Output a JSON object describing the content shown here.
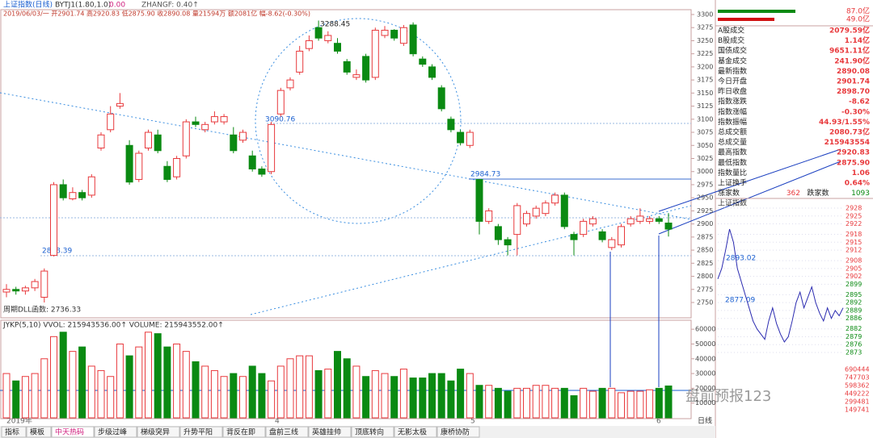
{
  "header": {
    "name": "上证指数(日线)",
    "indicator": "BYTJ1(1.80,1.0)",
    "ind_value": "0.00",
    "zhangf": "ZHANGF: 0.40↑",
    "quote": "2019/06/03/一 开2901.74 高2920.83 低2875.90 收2890.08 量21594万 额2081亿 幅-8.62(-0.30%)"
  },
  "chart_data": {
    "type": "candlestick",
    "open": [
      2770,
      2775,
      2772,
      2778,
      2760,
      2840,
      2975,
      2948,
      2960,
      2955,
      3045,
      3080,
      3125,
      3050,
      2985,
      3045,
      3070,
      3010,
      2990,
      3030,
      3095,
      3080,
      3095,
      3095,
      3070,
      3060,
      3030,
      3005,
      3000,
      3110,
      3160,
      3190,
      3235,
      3275,
      3250,
      3245,
      3210,
      3180,
      3220,
      3180,
      3260,
      3270,
      3245,
      3280,
      3215,
      3200,
      3160,
      3100,
      3075,
      3050,
      2985,
      2905,
      2895,
      2870,
      2880,
      2900,
      2915,
      2920,
      2940,
      2955,
      2880,
      2880,
      2900,
      2885,
      2855,
      2860,
      2900,
      2905,
      2905,
      2910,
      2901.74
    ],
    "close": [
      2775,
      2772,
      2778,
      2790,
      2810,
      2975,
      2950,
      2960,
      2950,
      2990,
      3070,
      3110,
      3130,
      2980,
      3035,
      3075,
      3040,
      2985,
      3025,
      3095,
      3090,
      3090,
      3105,
      3105,
      3040,
      3075,
      3005,
      2995,
      3090,
      3155,
      3175,
      3230,
      3250,
      3255,
      3260,
      3230,
      3190,
      3185,
      3175,
      3270,
      3270,
      3255,
      3275,
      3225,
      3205,
      3180,
      3120,
      3080,
      3055,
      3075,
      2905,
      2925,
      2870,
      2860,
      2935,
      2920,
      2930,
      2940,
      2955,
      2895,
      2870,
      2905,
      2910,
      2870,
      2870,
      2895,
      2910,
      2915,
      2910,
      2905,
      2890.08
    ],
    "high": [
      2785,
      2780,
      2782,
      2795,
      2815,
      2980,
      2985,
      2970,
      2965,
      2995,
      3075,
      3125,
      3150,
      3060,
      3040,
      3080,
      3080,
      3020,
      3030,
      3100,
      3105,
      3095,
      3115,
      3110,
      3085,
      3080,
      3040,
      3010,
      3095,
      3160,
      3180,
      3240,
      3260,
      3288.45,
      3268,
      3255,
      3215,
      3195,
      3225,
      3275,
      3278,
      3272,
      3280,
      3285,
      3220,
      3205,
      3165,
      3105,
      3080,
      3080,
      2985,
      2930,
      2900,
      2875,
      2940,
      2925,
      2935,
      2945,
      2960,
      2960,
      2885,
      2910,
      2915,
      2890,
      2875,
      2900,
      2915,
      2930,
      2915,
      2915,
      2920.83
    ],
    "low": [
      2760,
      2765,
      2765,
      2772,
      2750,
      2838,
      2945,
      2945,
      2945,
      2950,
      3040,
      3075,
      3120,
      2975,
      2980,
      3040,
      3035,
      2980,
      2985,
      3025,
      3085,
      3075,
      3090,
      3090,
      3035,
      3055,
      3000,
      2990,
      2995,
      3105,
      3155,
      3185,
      3230,
      3250,
      3245,
      3225,
      3185,
      3175,
      3170,
      3175,
      3255,
      3250,
      3240,
      3220,
      3200,
      3175,
      3115,
      3075,
      3050,
      3045,
      2880,
      2900,
      2860,
      2840,
      2840,
      2895,
      2910,
      2915,
      2935,
      2890,
      2840,
      2875,
      2895,
      2865,
      2850,
      2855,
      2895,
      2900,
      2900,
      2900,
      2875.9
    ],
    "volume": [
      30000,
      25000,
      28000,
      30000,
      40000,
      55000,
      58000,
      45000,
      48000,
      35000,
      32000,
      28000,
      50000,
      42000,
      48000,
      58000,
      57000,
      48000,
      50000,
      45000,
      38000,
      35000,
      32000,
      28000,
      30000,
      28000,
      35000,
      30000,
      25000,
      35000,
      40000,
      42000,
      42000,
      32000,
      33000,
      45000,
      40000,
      35000,
      28000,
      32000,
      30000,
      28000,
      33000,
      27000,
      27000,
      30000,
      30000,
      25000,
      33000,
      30000,
      22000,
      22000,
      20000,
      18000,
      20000,
      20000,
      22000,
      22000,
      20000,
      20000,
      15000,
      20000,
      18000,
      20000,
      20000,
      17000,
      18000,
      18000,
      19000,
      20000,
      21594
    ],
    "ylim": [
      2740,
      3310
    ],
    "yticks": [
      3300,
      3275,
      3250,
      3225,
      3200,
      3175,
      3150,
      3125,
      3100,
      3075,
      3050,
      3025,
      3000,
      2975,
      2950,
      2925,
      2900,
      2875,
      2850,
      2825,
      2800,
      2775,
      2750
    ],
    "volume_ylim": [
      0,
      65000
    ],
    "volume_ticks": [
      60000,
      50000,
      40000,
      30000,
      20000,
      10000
    ],
    "volume_title": "JYKP(5,10) VVOL: 215943536.00↑  VOLUME: 215943552.00↑",
    "up_color": "#e8393c",
    "down_color": "#0a8a12",
    "annotations": [
      "3288.45",
      "3090.76",
      "2984.73",
      "2838.39",
      "周期DLL函数: 2736.33"
    ],
    "x_labels": [
      "2019年",
      "4",
      "5",
      "6"
    ]
  },
  "panel": {
    "bars": [
      "87.0亿",
      "49.0亿"
    ],
    "rows": [
      [
        "A股成交",
        "2079.59亿"
      ],
      [
        "B股成交",
        "1.14亿"
      ],
      [
        "国债成交",
        "9651.11亿"
      ],
      [
        "基金成交",
        "241.90亿"
      ],
      [
        "最新指数",
        "2890.08"
      ],
      [
        "今日开盘",
        "2901.74"
      ],
      [
        "昨日收盘",
        "2898.70"
      ],
      [
        "指数涨跌",
        "-8.62"
      ],
      [
        "指数涨幅",
        "-0.30%"
      ],
      [
        "指数振幅",
        "44.93/1.55%"
      ],
      [
        "总成交额",
        "2080.73亿"
      ],
      [
        "总成交量",
        "215943554"
      ],
      [
        "最高指数",
        "2920.83"
      ],
      [
        "最低指数",
        "2875.90"
      ],
      [
        "指数量比",
        "1.06"
      ],
      [
        "上证换手",
        "0.64%"
      ]
    ],
    "advance_label": "涨家数",
    "advance": 362,
    "decline_label": "跌家数",
    "decline": 1093
  },
  "mini": {
    "title": "上证指数",
    "ylim": [
      2873,
      2928
    ],
    "price_labels": [
      2928,
      2925,
      2922,
      2918,
      2915,
      2912,
      2908,
      2905,
      2902,
      2899,
      2895,
      2892,
      2889,
      2886,
      2882,
      2879,
      2876,
      2873
    ],
    "volume_labels": [
      690444,
      747703,
      598362,
      449222,
      299481,
      149741
    ],
    "line": [
      2901,
      2905,
      2912,
      2920,
      2915,
      2905,
      2900,
      2895,
      2890,
      2885,
      2882,
      2880,
      2878,
      2885,
      2890,
      2884,
      2880,
      2877,
      2879,
      2885,
      2892,
      2896,
      2890,
      2894,
      2898,
      2892,
      2888,
      2885,
      2890,
      2886,
      2889,
      2887,
      2890
    ],
    "annotations": [
      "2893.02",
      "2877.09"
    ]
  },
  "tabs": [
    "指标",
    "模板",
    "中天热码",
    "步级过峰",
    "梯级突异",
    "升势平阳",
    "背反在即",
    "盘前三线",
    "英雄挂帅",
    "顶底转向",
    "无影太极",
    "康桥协防"
  ],
  "period": "日线",
  "watermark": "盘前预报123"
}
